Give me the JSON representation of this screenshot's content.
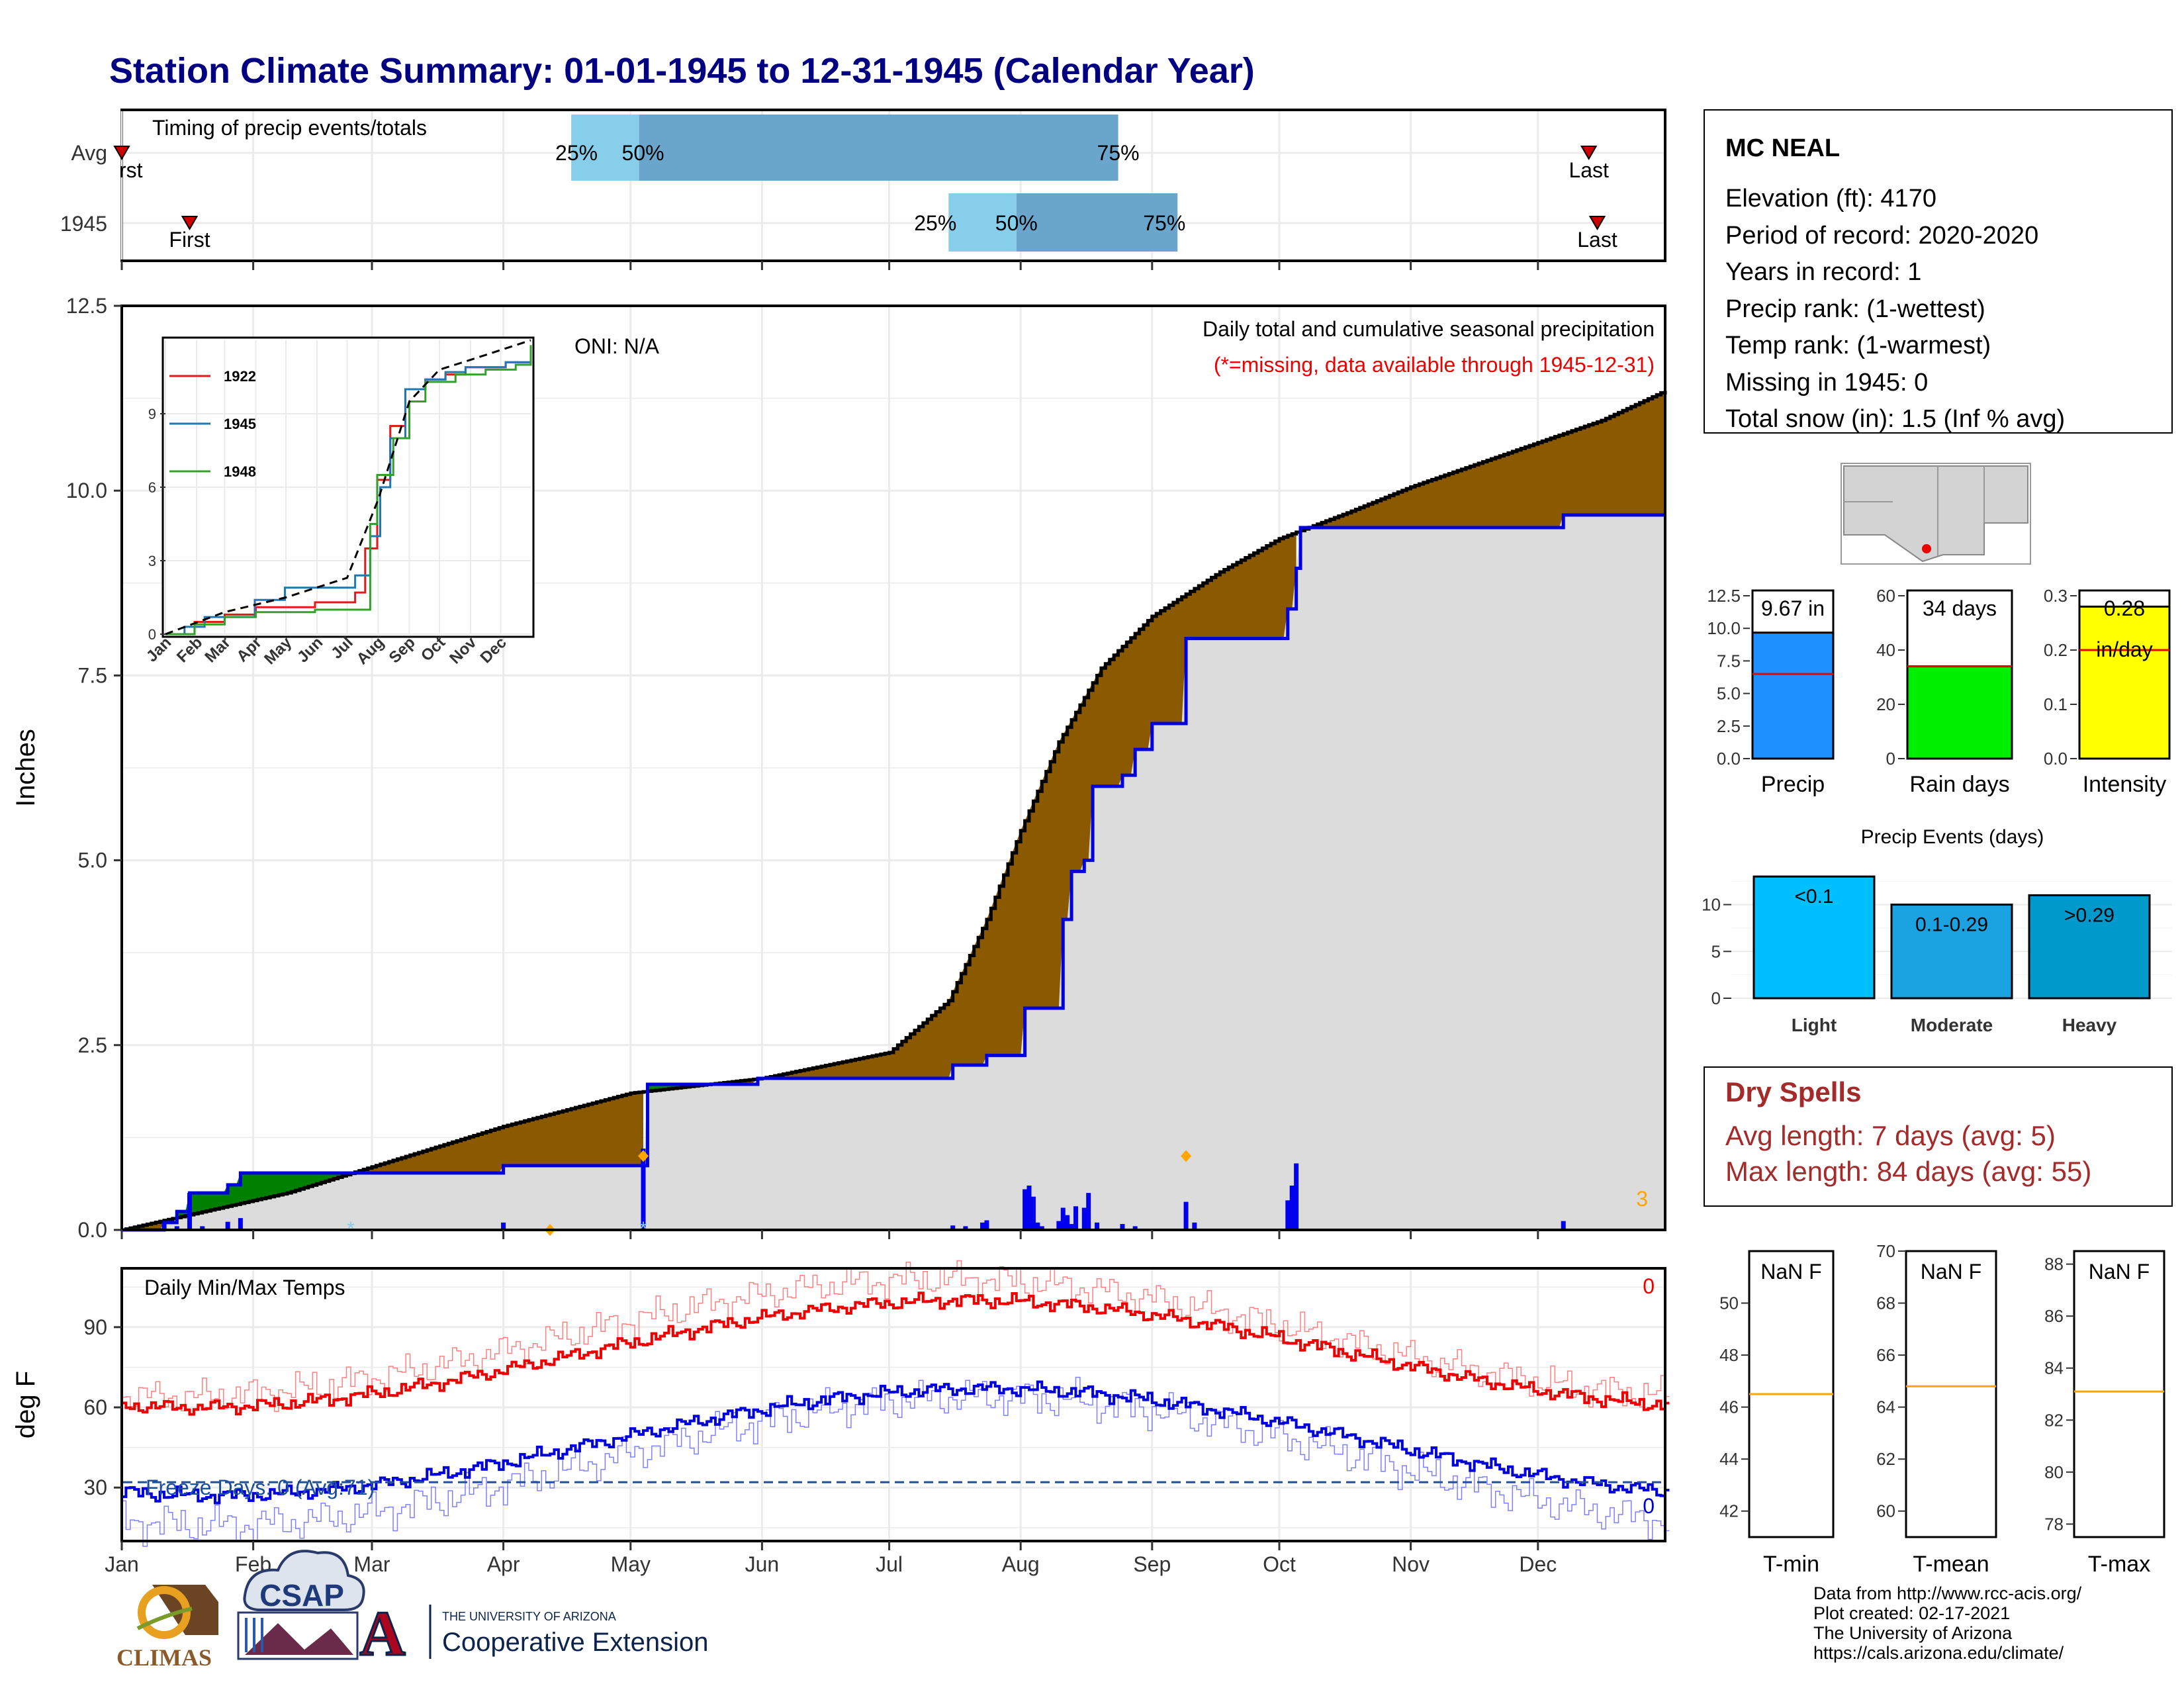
{
  "title": "Station Climate Summary: 01-01-1945 to 12-31-1945 (Calendar Year)",
  "timing_panel": {
    "label": "Timing of precip events/totals",
    "rows": [
      "Avg",
      "1945"
    ],
    "first_label": "First",
    "first_label_avg": "rst",
    "last_label": "Last",
    "p25": "25%",
    "p50": "50%",
    "p75": "75%",
    "avg": {
      "first_day": 1,
      "p25_day": 107,
      "p50_day": 123,
      "p75_day": 236,
      "last_day": 347
    },
    "y1945": {
      "first_day": 17,
      "p25_day": 196,
      "p50_day": 212,
      "p75_day": 250,
      "last_day": 349
    }
  },
  "station": {
    "name": "MC NEAL",
    "lines": [
      "Elevation (ft): 4170",
      "Period of record: 2020-2020",
      "Years in record: 1",
      "Precip rank:  (1-wettest)",
      "Temp rank:  (1-warmest)",
      "Missing in 1945: 0",
      "Total snow (in): 1.5 (Inf % avg)"
    ]
  },
  "main_panel": {
    "ylabel": "Inches",
    "oni": "ONI: N/A",
    "legend_title": "Daily total and cumulative seasonal precipitation",
    "missing_note": "(*=missing, data available through 1945-12-31)",
    "corner_count": "3",
    "y_ticks": [
      "0.0",
      "2.5",
      "5.0",
      "7.5",
      "10.0",
      "12.5"
    ]
  },
  "months": [
    "Jan",
    "Feb",
    "Mar",
    "Apr",
    "May",
    "Jun",
    "Jul",
    "Aug",
    "Sep",
    "Oct",
    "Nov",
    "Dec"
  ],
  "inset": {
    "series_names": [
      "1922",
      "1945",
      "1948"
    ],
    "colors": {
      "1922": "#e31a1c",
      "1945": "#1f78b4",
      "1948": "#33a02c"
    },
    "y_ticks": [
      "0",
      "3",
      "6",
      "9"
    ]
  },
  "temp_panel": {
    "label": "Daily Min/Max Temps",
    "ylabel": "deg F",
    "freeze": "Freeze Days: 0 (Avg:71)",
    "hot_count": "0",
    "cold_count": "0",
    "y_ticks": [
      "30",
      "60",
      "90"
    ],
    "freeze_line": 32
  },
  "mini_bars": {
    "precip": {
      "label": "Precip",
      "value_text": "9.67 in",
      "value": 9.67,
      "avg": 6.5,
      "ylim": [
        0,
        12.5
      ],
      "ticks": [
        "0.0",
        "2.5",
        "5.0",
        "7.5",
        "10.0",
        "12.5"
      ],
      "color": "#1e90ff"
    },
    "rain_days": {
      "label": "Rain days",
      "value_text": "34 days",
      "value": 34,
      "avg": 34,
      "ylim": [
        0,
        60
      ],
      "ticks": [
        "0",
        "20",
        "40",
        "60"
      ],
      "color": "#00ee00"
    },
    "intensity": {
      "label": "Intensity",
      "value_text": "0.28",
      "value_unit": "in/day",
      "value": 0.28,
      "avg": 0.2,
      "ylim": [
        0,
        0.3
      ],
      "ticks": [
        "0.0",
        "0.1",
        "0.2",
        "0.3"
      ],
      "color": "#ffff00"
    }
  },
  "precip_events": {
    "title": "Precip Events (days)",
    "categories": [
      "Light",
      "Moderate",
      "Heavy"
    ],
    "labels": [
      "<0.1",
      "0.1-0.29",
      ">0.29"
    ],
    "values": [
      13,
      10,
      11
    ],
    "colors": [
      "#00bfff",
      "#1aa3e0",
      "#0099cc"
    ],
    "ticks": [
      "0",
      "5",
      "10"
    ]
  },
  "dry_spells": {
    "title": "Dry Spells",
    "avg_length": "Avg length: 7 days (avg: 5)",
    "max_length": "Max length: 84 days (avg: 55)"
  },
  "temp_boxes": [
    {
      "label": "T-min",
      "value_text": "NaN F",
      "avg": 46.5,
      "ylim": [
        41,
        52
      ],
      "ticks": [
        "42",
        "44",
        "46",
        "48",
        "50"
      ]
    },
    {
      "label": "T-mean",
      "value_text": "NaN F",
      "avg": 64.8,
      "ylim": [
        59,
        70
      ],
      "ticks": [
        "60",
        "62",
        "64",
        "66",
        "68",
        "70"
      ]
    },
    {
      "label": "T-max",
      "value_text": "NaN F",
      "avg": 83.1,
      "ylim": [
        77.5,
        88.5
      ],
      "ticks": [
        "78",
        "80",
        "82",
        "84",
        "86",
        "88"
      ]
    }
  ],
  "footer": {
    "lines": [
      "Data from http://www.rcc-acis.org/",
      "Plot created: 02-17-2021",
      "The University of Arizona",
      "https://cals.arizona.edu/climate/"
    ]
  },
  "logos": {
    "climas": "CLIMAS",
    "csap": "CSAP",
    "ua_univ": "THE UNIVERSITY OF ARIZONA",
    "ua_coop": "Cooperative Extension",
    "ua_letter": "A"
  },
  "colors": {
    "title": "#000080",
    "cum_fill_above": "#8b5a00",
    "cum_fill_green": "#008000",
    "cum_line": "#0000cc",
    "avg_line": "#000000",
    "bars": "#0000ee",
    "tmax": "#ee0000",
    "tmin": "#0000dd",
    "dry": "#a52a2a",
    "timing_light": "#87ceeb",
    "timing_dark": "#6aa6cc"
  }
}
